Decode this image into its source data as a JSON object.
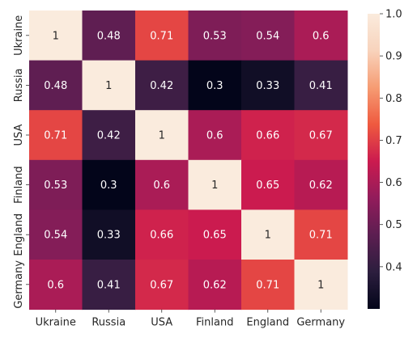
{
  "chart_data": {
    "type": "heatmap",
    "title": "",
    "xlabel": "",
    "ylabel": "",
    "x_categories": [
      "Ukraine",
      "Russia",
      "USA",
      "Finland",
      "England",
      "Germany"
    ],
    "y_categories": [
      "Ukraine",
      "Russia",
      "USA",
      "Finland",
      "England",
      "Germany"
    ],
    "values": [
      [
        1,
        0.48,
        0.71,
        0.53,
        0.54,
        0.6
      ],
      [
        0.48,
        1,
        0.42,
        0.3,
        0.33,
        0.41
      ],
      [
        0.71,
        0.42,
        1,
        0.6,
        0.66,
        0.67
      ],
      [
        0.53,
        0.3,
        0.6,
        1,
        0.65,
        0.62
      ],
      [
        0.54,
        0.33,
        0.66,
        0.65,
        1,
        0.71
      ],
      [
        0.6,
        0.41,
        0.67,
        0.62,
        0.71,
        1
      ]
    ],
    "annotations": [
      [
        "1",
        "0.48",
        "0.71",
        "0.53",
        "0.54",
        "0.6"
      ],
      [
        "0.48",
        "1",
        "0.42",
        "0.3",
        "0.33",
        "0.41"
      ],
      [
        "0.71",
        "0.42",
        "1",
        "0.6",
        "0.66",
        "0.67"
      ],
      [
        "0.53",
        "0.3",
        "0.6",
        "1",
        "0.65",
        "0.62"
      ],
      [
        "0.54",
        "0.33",
        "0.66",
        "0.65",
        "1",
        "0.71"
      ],
      [
        "0.6",
        "0.41",
        "0.67",
        "0.62",
        "0.71",
        "1"
      ]
    ],
    "colorbar": {
      "min": 0.3,
      "max": 1.0,
      "ticks": [
        0.4,
        0.5,
        0.6,
        0.7,
        0.8,
        0.9,
        1.0
      ],
      "tick_labels": [
        "0.4",
        "0.5",
        "0.6",
        "0.7",
        "0.8",
        "0.9",
        "1.0"
      ]
    },
    "colormap": "rocket",
    "colormap_stops": [
      "#03051a",
      "#2c1e3e",
      "#5c1e51",
      "#921c5b",
      "#cb1b4f",
      "#ef5a3f",
      "#f69c73",
      "#f8d3bc",
      "#faebdd"
    ],
    "grid": false,
    "legend": "none"
  }
}
